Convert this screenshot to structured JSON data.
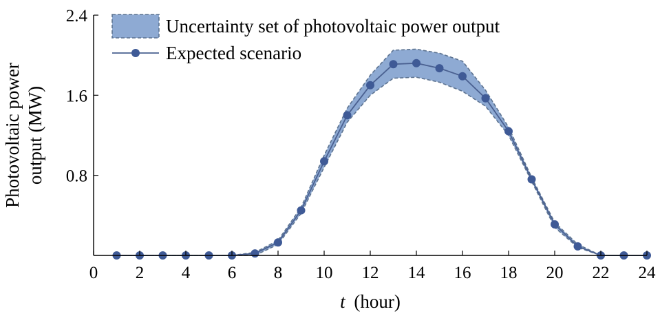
{
  "chart_data": {
    "type": "line",
    "xlabel_var": "t",
    "xlabel_unit": "(hour)",
    "ylabel_line1": "Photovoltaic power",
    "ylabel_line2": "output (MW)",
    "xlim": [
      0,
      24
    ],
    "ylim": [
      0,
      2.4
    ],
    "xticks": [
      0,
      2,
      4,
      6,
      8,
      10,
      12,
      14,
      16,
      18,
      20,
      22,
      24
    ],
    "yticks": [
      0.8,
      1.6,
      2.4
    ],
    "ytick_labels": [
      "0.8",
      "1.6",
      "2.4"
    ],
    "grid": false,
    "legend_position": "top-left",
    "colors": {
      "band_fill": "#8eaad3",
      "band_edge": "#5d7390",
      "line": "#4a6090",
      "marker": "#3f5a96"
    },
    "series": [
      {
        "name": "Uncertainty set of photovoltaic power output",
        "type": "band",
        "x": [
          1,
          2,
          3,
          4,
          5,
          6,
          7,
          8,
          9,
          10,
          11,
          12,
          13,
          14,
          15,
          16,
          17,
          18,
          19,
          20,
          21,
          22,
          23,
          24
        ],
        "upper": [
          0.0,
          0.0,
          0.0,
          0.0,
          0.0,
          0.0,
          0.03,
          0.15,
          0.48,
          1.0,
          1.47,
          1.8,
          2.05,
          2.06,
          2.02,
          1.94,
          1.65,
          1.28,
          0.78,
          0.33,
          0.11,
          0.0,
          0.0,
          0.0
        ],
        "lower": [
          0.0,
          0.0,
          0.0,
          0.0,
          0.0,
          0.0,
          0.0,
          0.11,
          0.42,
          0.88,
          1.33,
          1.6,
          1.77,
          1.78,
          1.73,
          1.64,
          1.49,
          1.2,
          0.74,
          0.28,
          0.08,
          0.0,
          0.0,
          0.0
        ]
      },
      {
        "name": "Expected scenario",
        "type": "line",
        "x": [
          1,
          2,
          3,
          4,
          5,
          6,
          7,
          8,
          9,
          10,
          11,
          12,
          13,
          14,
          15,
          16,
          17,
          18,
          19,
          20,
          21,
          22,
          23,
          24
        ],
        "values": [
          0.0,
          0.0,
          0.0,
          0.0,
          0.0,
          0.0,
          0.02,
          0.13,
          0.45,
          0.94,
          1.4,
          1.7,
          1.91,
          1.92,
          1.87,
          1.79,
          1.57,
          1.24,
          0.76,
          0.31,
          0.09,
          0.0,
          0.0,
          0.0
        ]
      }
    ]
  }
}
